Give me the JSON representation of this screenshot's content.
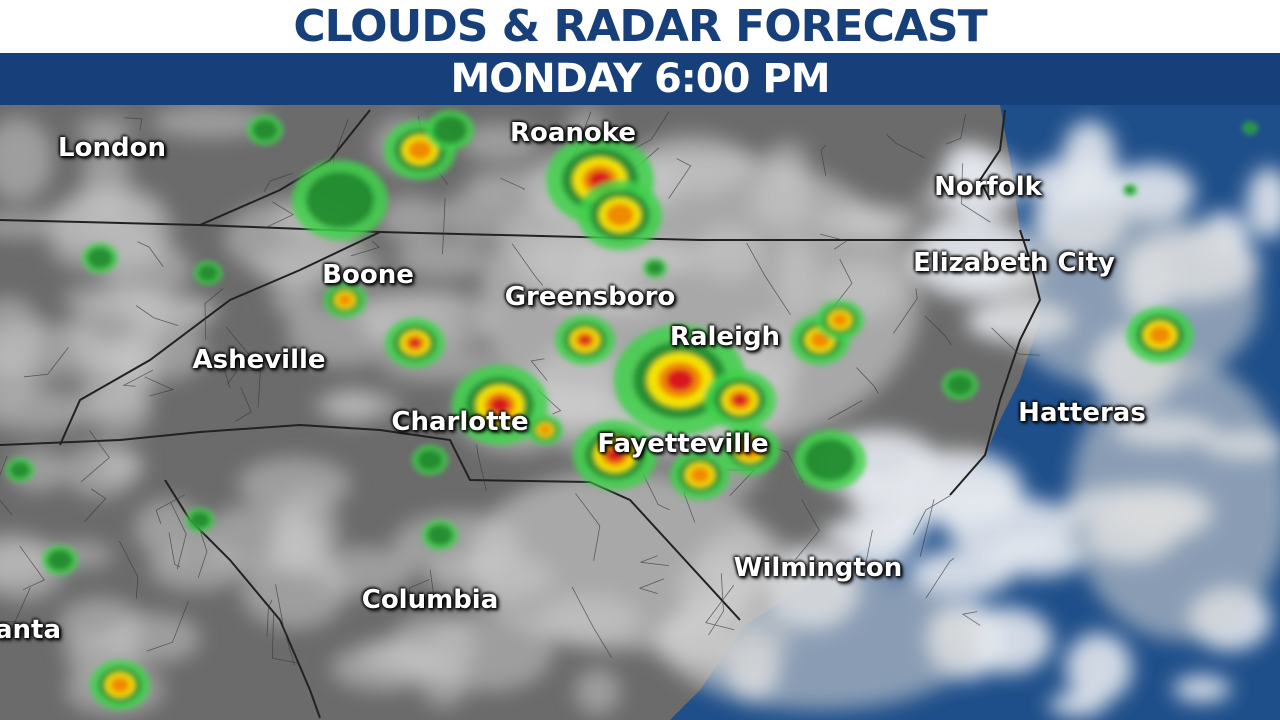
{
  "header": {
    "title": "CLOUDS & RADAR FORECAST",
    "subtitle": "MONDAY 6:00 PM"
  },
  "colors": {
    "brand_blue": "#173f7a",
    "land": "#6b6b6b",
    "ocean": "#1f4f8a",
    "cloud": "#d8d8d8",
    "radar_light": "#3fd14a",
    "radar_dark": "#1e7f2a",
    "radar_yellow": "#f5e400",
    "radar_orange": "#f08a00",
    "radar_red": "#d8141c"
  },
  "cities": [
    {
      "name": "London"
    },
    {
      "name": "Roanoke"
    },
    {
      "name": "Norfolk"
    },
    {
      "name": "Boone"
    },
    {
      "name": "Greensboro"
    },
    {
      "name": "Elizabeth City"
    },
    {
      "name": "Raleigh"
    },
    {
      "name": "Asheville"
    },
    {
      "name": "Charlotte"
    },
    {
      "name": "Hatteras"
    },
    {
      "name": "Fayetteville"
    },
    {
      "name": "Wilmington"
    },
    {
      "name": "Columbia"
    },
    {
      "name": "anta"
    }
  ]
}
